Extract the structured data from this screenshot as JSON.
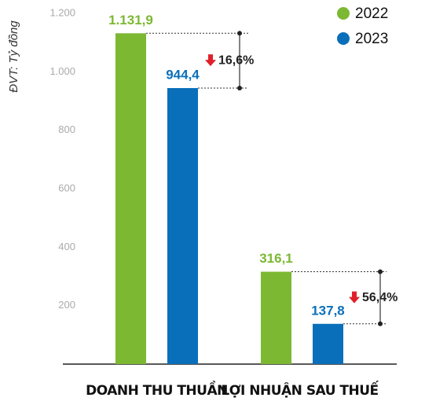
{
  "chart_data": {
    "type": "bar",
    "y_axis_label": "ĐVT: Tỷ đồng",
    "categories": [
      "DOANH THU THUẦN",
      "LỢI NHUẬN SAU THUẾ"
    ],
    "series": [
      {
        "name": "2022",
        "color": "#7cb832",
        "values": [
          1131.9,
          316.1
        ],
        "value_labels": [
          "1.131,9",
          "316,1"
        ]
      },
      {
        "name": "2023",
        "color": "#0a6fba",
        "values": [
          944.4,
          137.8
        ],
        "value_labels": [
          "944,4",
          "137,8"
        ]
      }
    ],
    "annotations": [
      "16,6%",
      "56,4%"
    ],
    "ylim": [
      0,
      1200
    ],
    "yticks": [
      200,
      400,
      600,
      800,
      {
        "value": 1000,
        "label": "1.000"
      },
      {
        "value": 1200,
        "label": "1.200"
      }
    ],
    "legend": "top-right"
  }
}
